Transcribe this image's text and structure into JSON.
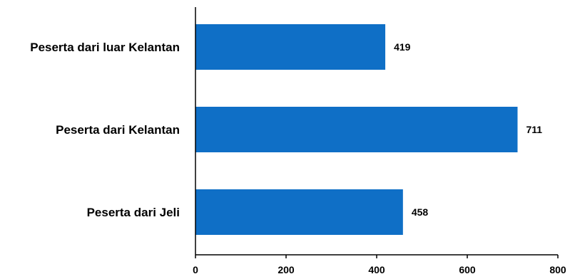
{
  "chart_data": {
    "type": "bar",
    "orientation": "horizontal",
    "categories": [
      "Peserta dari luar Kelantan",
      "Peserta dari Kelantan",
      "Peserta dari Jeli"
    ],
    "values": [
      419,
      711,
      458
    ],
    "data_labels": [
      "419",
      "711",
      "458"
    ],
    "xlim": [
      0,
      800
    ],
    "x_ticks": [
      0,
      200,
      400,
      600,
      800
    ],
    "x_tick_labels": [
      "0",
      "200",
      "400",
      "600",
      "800"
    ],
    "title": "",
    "xlabel": "",
    "ylabel": "",
    "grid": false,
    "legend": "none",
    "bar_color": "#0F6FC6"
  }
}
